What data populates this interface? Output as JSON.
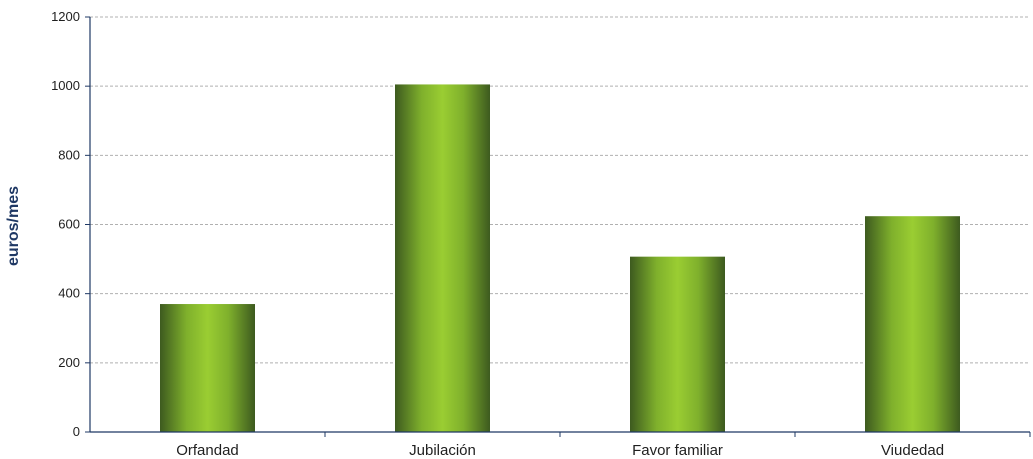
{
  "chart_data": {
    "type": "bar",
    "title": "",
    "xlabel": "",
    "ylabel": "euros/mes",
    "categories": [
      "Orfandad",
      "Jubilación",
      "Favor familiar",
      "Viudedad"
    ],
    "values": [
      370,
      1005,
      507,
      624
    ],
    "ylim": [
      0,
      1200
    ],
    "yticks": [
      0,
      200,
      400,
      600,
      800,
      1000,
      1200
    ],
    "grid": true,
    "legend": "none",
    "colors": {
      "bar_dark": "#3d5a1f",
      "bar_light": "#9acd32",
      "axis": "#1f3864",
      "grid": "#b0b0b0"
    }
  }
}
